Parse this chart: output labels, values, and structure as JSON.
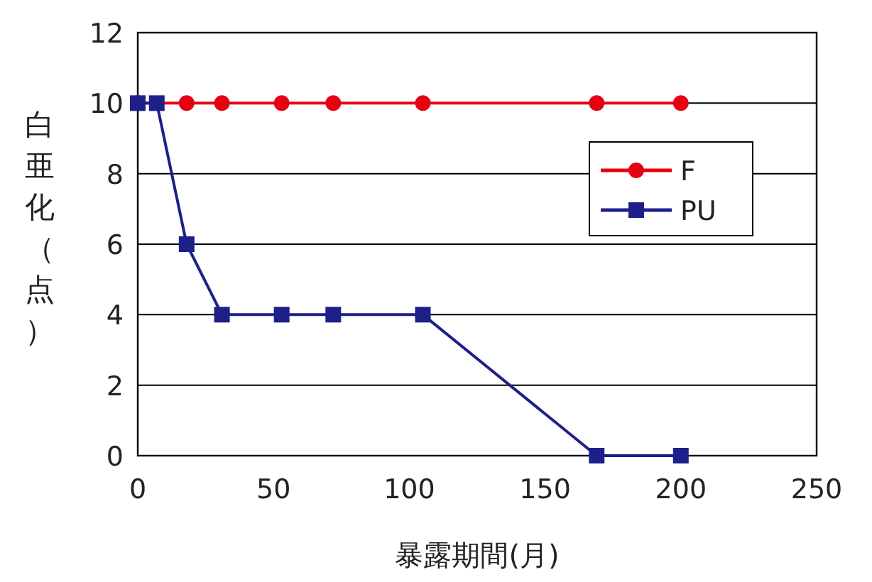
{
  "chart_data": {
    "type": "line",
    "xlabel": "暴露期間(月)",
    "ylabel": "白亜化（点）",
    "x": [
      0,
      7,
      18,
      31,
      53,
      72,
      105,
      169,
      200
    ],
    "series": [
      {
        "name": "F",
        "color": "#e60012",
        "marker": "circle",
        "values": [
          10,
          null,
          10,
          10,
          10,
          10,
          10,
          10,
          10
        ]
      },
      {
        "name": "PU",
        "color": "#1d2088",
        "marker": "square",
        "values": [
          10,
          10,
          6,
          4,
          4,
          4,
          4,
          0,
          0
        ]
      }
    ],
    "xlim": [
      0,
      250
    ],
    "xticks": [
      0,
      50,
      100,
      150,
      200,
      250
    ],
    "ylim": [
      0,
      12
    ],
    "yticks": [
      0,
      2,
      4,
      6,
      8,
      10,
      12
    ],
    "grid": "y",
    "legend": "right",
    "line_style": "solid"
  }
}
